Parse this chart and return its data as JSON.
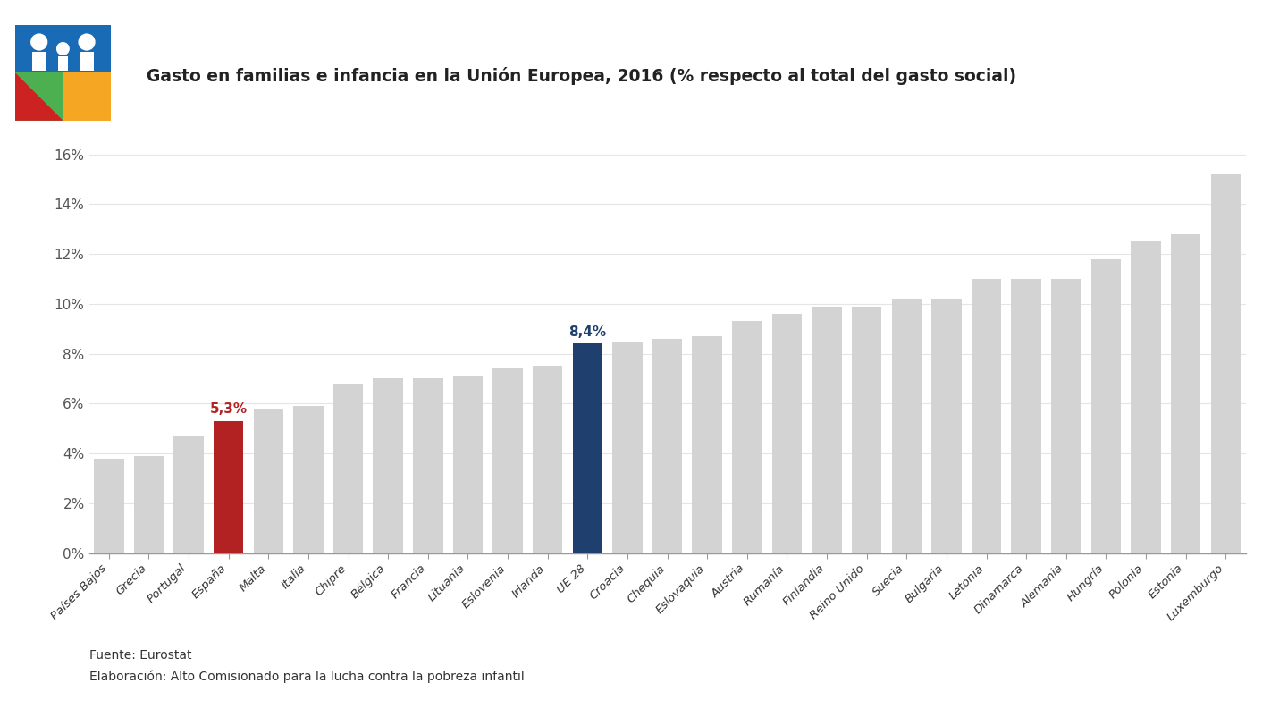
{
  "title": "Gasto en familias e infancia en la Unión Europea, 2016 (% respecto al total del gasto social)",
  "categories": [
    "Países Bajos",
    "Grecia",
    "Portugal",
    "España",
    "Malta",
    "Italia",
    "Chipre",
    "Bélgica",
    "Francia",
    "Lituania",
    "Eslovenia",
    "Irlanda",
    "UE 28",
    "Croacia",
    "Chequia",
    "Eslovaquia",
    "Austria",
    "Rumanía",
    "Finlandia",
    "Reino Unido",
    "Suecia",
    "Bulgaria",
    "Letonia",
    "Dinamarca",
    "Alemania",
    "Hungría",
    "Polonia",
    "Estonia",
    "Luxemburgo"
  ],
  "values": [
    3.8,
    3.9,
    4.7,
    5.3,
    5.8,
    5.9,
    6.8,
    7.0,
    7.0,
    7.1,
    7.4,
    7.5,
    8.4,
    8.5,
    8.6,
    8.7,
    9.3,
    9.6,
    9.9,
    9.9,
    10.2,
    10.2,
    11.0,
    11.0,
    11.0,
    11.8,
    12.5,
    12.8,
    15.2
  ],
  "bar_colors_default": "#d3d3d3",
  "bar_color_spain": "#b22222",
  "bar_color_eu": "#1f3f6e",
  "spain_label": "5,3%",
  "eu_label": "8,4%",
  "spain_index": 3,
  "eu_index": 12,
  "ylabel_ticks": [
    "0%",
    "2%",
    "4%",
    "6%",
    "8%",
    "10%",
    "12%",
    "14%",
    "16%"
  ],
  "ytick_values": [
    0,
    2,
    4,
    6,
    8,
    10,
    12,
    14,
    16
  ],
  "source_line1": "Fuente: Eurostat",
  "source_line2": "Elaboración: Alto Comisionado para la lucha contra la pobreza infantil",
  "background_color": "#ffffff",
  "grid_color": "#e5e5e5",
  "logo_blue": "#1a6bb5",
  "logo_green": "#4caf50",
  "logo_orange": "#f5a623",
  "logo_red": "#cc2222"
}
